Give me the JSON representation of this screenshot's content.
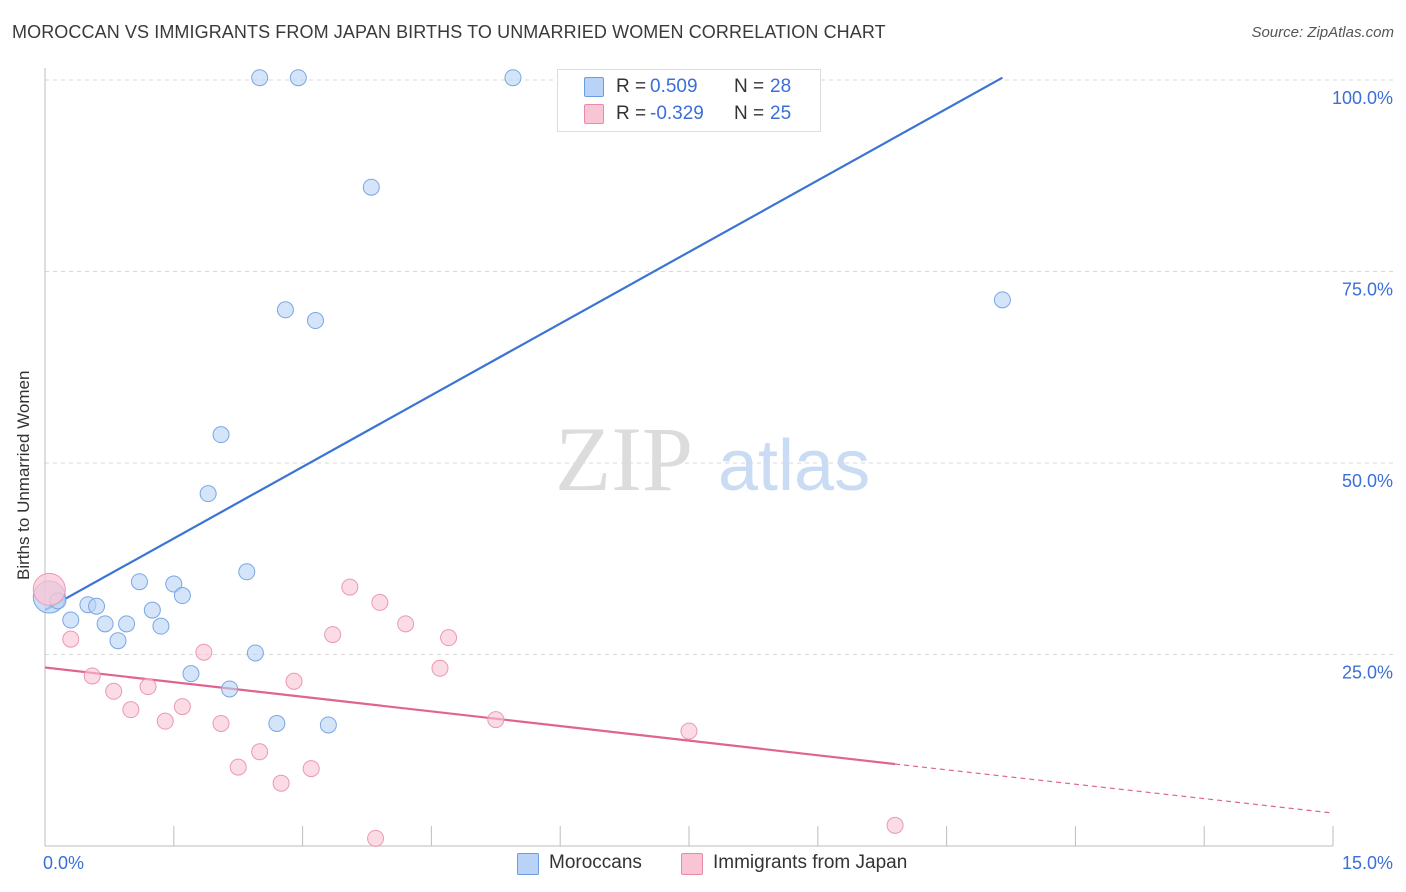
{
  "title": "MOROCCAN VS IMMIGRANTS FROM JAPAN BIRTHS TO UNMARRIED WOMEN CORRELATION CHART",
  "source": "Source: ZipAtlas.com",
  "watermark": {
    "zip": "ZIP",
    "atlas": "atlas"
  },
  "stats": [
    {
      "r_label": "R =",
      "r_value": "0.509",
      "n_label": "N =",
      "n_value": "28",
      "fill": "#b8d3f5",
      "stroke": "#6b9be0"
    },
    {
      "r_label": "R =",
      "r_value": "-0.329",
      "n_label": "N =",
      "n_value": "25",
      "fill": "#f9c5d4",
      "stroke": "#e88aa8"
    }
  ],
  "legend": [
    {
      "label": "Moroccans",
      "fill": "#b8d3f5",
      "stroke": "#6b9be0"
    },
    {
      "label": "Immigrants from Japan",
      "fill": "#f9c5d4",
      "stroke": "#e88aa8"
    }
  ],
  "chart_data": {
    "type": "scatter",
    "title": "MOROCCAN VS IMMIGRANTS FROM JAPAN BIRTHS TO UNMARRIED WOMEN CORRELATION CHART",
    "xlabel": "",
    "ylabel": "Births to Unmarried Women",
    "xlim": [
      0,
      15
    ],
    "ylim": [
      0,
      102.5
    ],
    "x_ticks": [
      0,
      15
    ],
    "x_tick_labels": [
      "0.0%",
      "15.0%"
    ],
    "y_ticks": [
      25,
      50,
      75,
      100
    ],
    "y_tick_labels": [
      "25.0%",
      "50.0%",
      "75.0%",
      "100.0%"
    ],
    "grid": true,
    "series": [
      {
        "name": "Moroccans",
        "color": "#3a74d4",
        "fill": "#b8d3f5",
        "points": [
          [
            0.05,
            32.5
          ],
          [
            0.15,
            32.0
          ],
          [
            0.3,
            29.5
          ],
          [
            0.5,
            31.5
          ],
          [
            0.6,
            31.3
          ],
          [
            0.7,
            29.0
          ],
          [
            0.85,
            26.8
          ],
          [
            0.95,
            29.0
          ],
          [
            1.1,
            34.5
          ],
          [
            1.25,
            30.8
          ],
          [
            1.35,
            28.7
          ],
          [
            1.5,
            34.2
          ],
          [
            1.6,
            32.7
          ],
          [
            1.7,
            22.5
          ],
          [
            1.9,
            46.0
          ],
          [
            2.05,
            53.7
          ],
          [
            2.15,
            20.5
          ],
          [
            2.35,
            35.8
          ],
          [
            2.45,
            25.2
          ],
          [
            2.7,
            16.0
          ],
          [
            2.8,
            70.0
          ],
          [
            3.15,
            68.6
          ],
          [
            3.3,
            15.8
          ],
          [
            3.8,
            86.0
          ],
          [
            2.5,
            100.3
          ],
          [
            2.95,
            100.3
          ],
          [
            5.45,
            100.3
          ],
          [
            11.15,
            71.3
          ]
        ],
        "trend": {
          "x": [
            0,
            11.15
          ],
          "y": [
            30.8,
            100.3
          ],
          "style": "solid"
        }
      },
      {
        "name": "Immigrants from Japan",
        "color": "#e0648f",
        "fill": "#f9c5d4",
        "points": [
          [
            0.05,
            33.5
          ],
          [
            0.3,
            27.0
          ],
          [
            0.55,
            22.2
          ],
          [
            0.8,
            20.2
          ],
          [
            1.0,
            17.8
          ],
          [
            1.2,
            20.8
          ],
          [
            1.4,
            16.3
          ],
          [
            1.6,
            18.2
          ],
          [
            1.85,
            25.3
          ],
          [
            2.05,
            16.0
          ],
          [
            2.25,
            10.3
          ],
          [
            2.5,
            12.3
          ],
          [
            2.75,
            8.2
          ],
          [
            2.9,
            21.5
          ],
          [
            3.1,
            10.1
          ],
          [
            3.35,
            27.6
          ],
          [
            3.55,
            33.8
          ],
          [
            3.9,
            31.8
          ],
          [
            3.85,
            1.0
          ],
          [
            4.2,
            29.0
          ],
          [
            4.6,
            23.2
          ],
          [
            4.7,
            27.2
          ],
          [
            5.25,
            16.5
          ],
          [
            7.5,
            15.0
          ],
          [
            9.9,
            2.7
          ]
        ],
        "trend": {
          "x": [
            0,
            9.9
          ],
          "y": [
            23.3,
            10.7
          ],
          "style": "solid",
          "dashed_extension": {
            "x": [
              9.9,
              15.0
            ],
            "y": [
              10.7,
              4.3
            ]
          }
        }
      }
    ]
  }
}
